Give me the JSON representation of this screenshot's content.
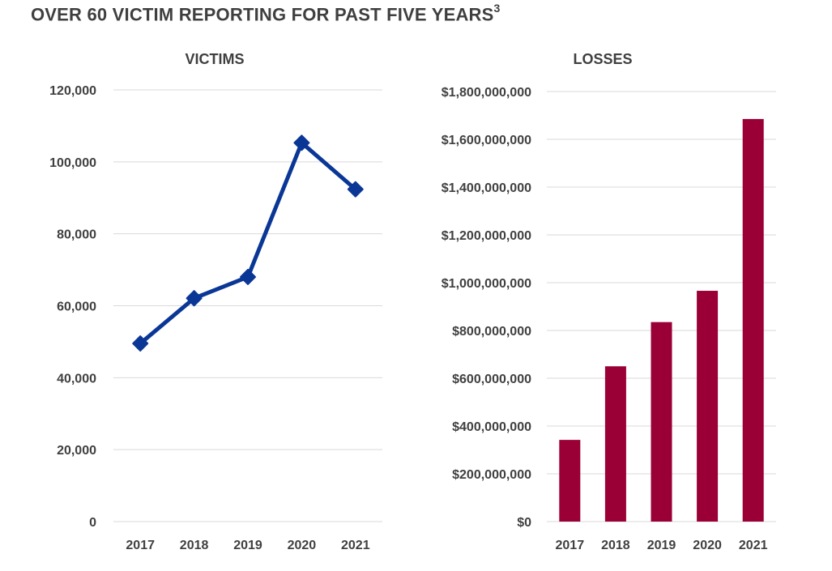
{
  "page": {
    "title": "OVER 60 VICTIM REPORTING FOR PAST FIVE YEARS",
    "footnote": "3"
  },
  "colors": {
    "victims_line": "#0a3796",
    "losses_bar": "#9a0036",
    "grid": "#d9d9d9",
    "text": "#404040"
  },
  "chart_data": [
    {
      "type": "line",
      "title": "VICTIMS",
      "x": [
        "2017",
        "2018",
        "2019",
        "2020",
        "2021"
      ],
      "values": [
        49523,
        62085,
        68013,
        105301,
        92371
      ],
      "ylim": [
        0,
        120000
      ],
      "yticks": [
        0,
        20000,
        40000,
        60000,
        80000,
        100000,
        120000
      ],
      "ytick_labels": [
        "0",
        "20,000",
        "40,000",
        "60,000",
        "80,000",
        "100,000",
        "120,000"
      ],
      "marker": "diamond",
      "grid": true
    },
    {
      "type": "bar",
      "title": "LOSSES",
      "categories": [
        "2017",
        "2018",
        "2019",
        "2020",
        "2021"
      ],
      "values": [
        342000000,
        650000000,
        835000000,
        966000000,
        1685000000
      ],
      "ylim": [
        0,
        1800000000
      ],
      "yticks": [
        0,
        200000000,
        400000000,
        600000000,
        800000000,
        1000000000,
        1200000000,
        1400000000,
        1600000000,
        1800000000
      ],
      "ytick_labels": [
        "$0",
        "$200,000,000",
        "$400,000,000",
        "$600,000,000",
        "$800,000,000",
        "$1,000,000,000",
        "$1,200,000,000",
        "$1,400,000,000",
        "$1,600,000,000",
        "$1,800,000,000"
      ],
      "grid": true
    }
  ]
}
